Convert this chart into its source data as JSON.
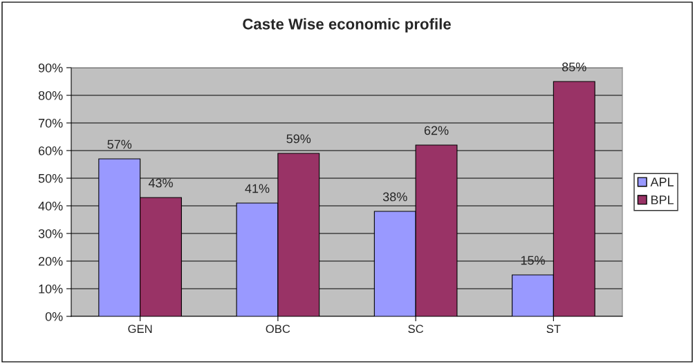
{
  "chart_data": {
    "type": "bar",
    "title": "Caste Wise economic profile",
    "categories": [
      "GEN",
      "OBC",
      "SC",
      "ST"
    ],
    "series": [
      {
        "name": "APL",
        "color": "#9999ff",
        "values": [
          57,
          41,
          38,
          15
        ],
        "value_labels": [
          "57%",
          "41%",
          "38%",
          "15%"
        ]
      },
      {
        "name": "BPL",
        "color": "#993366",
        "values": [
          43,
          59,
          62,
          85
        ],
        "value_labels": [
          "43%",
          "59%",
          "62%",
          "85%"
        ]
      }
    ],
    "ylim": [
      0,
      90
    ],
    "yticks": [
      {
        "value": 0,
        "label": "0%"
      },
      {
        "value": 10,
        "label": "10%"
      },
      {
        "value": 20,
        "label": "20%"
      },
      {
        "value": 30,
        "label": "30%"
      },
      {
        "value": 40,
        "label": "40%"
      },
      {
        "value": 50,
        "label": "50%"
      },
      {
        "value": 60,
        "label": "60%"
      },
      {
        "value": 70,
        "label": "70%"
      },
      {
        "value": 80,
        "label": "80%"
      },
      {
        "value": 90,
        "label": "90%"
      }
    ],
    "grid": "y",
    "legend": "right"
  }
}
